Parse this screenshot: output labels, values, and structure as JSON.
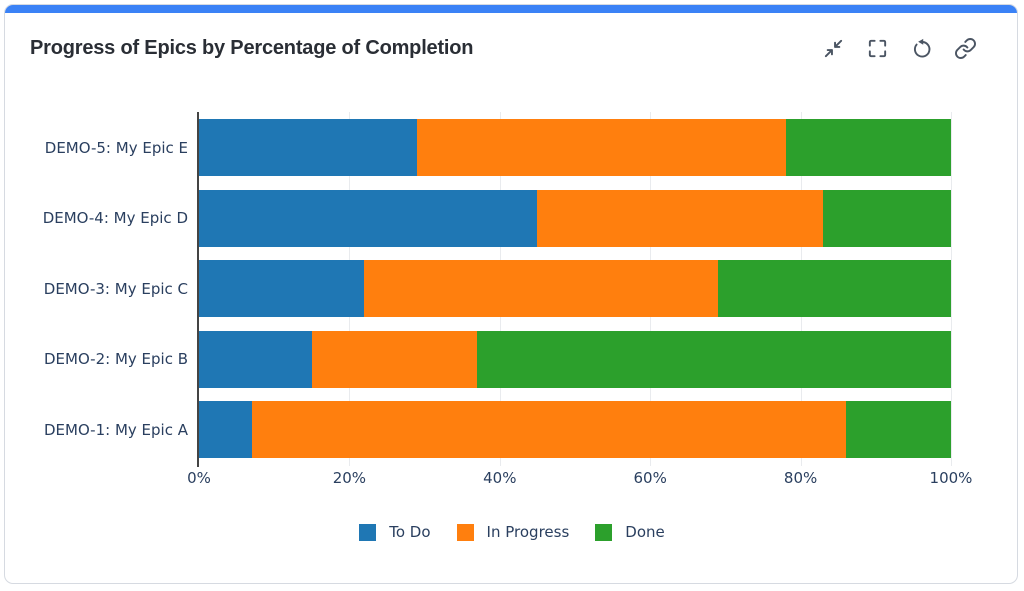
{
  "card": {
    "accent_color": "#3b82f6"
  },
  "header": {
    "title": "Progress of Epics by Percentage of Completion",
    "icons": [
      "collapse-icon",
      "fullscreen-icon",
      "refresh-icon",
      "link-icon"
    ]
  },
  "chart_data": {
    "type": "bar",
    "orientation": "horizontal",
    "stacked": true,
    "title": "Progress of Epics by Percentage of Completion",
    "categories": [
      "DEMO-5: My Epic E",
      "DEMO-4: My Epic D",
      "DEMO-3: My Epic C",
      "DEMO-2: My Epic B",
      "DEMO-1: My Epic A"
    ],
    "series": [
      {
        "name": "To Do",
        "color": "#1f77b4",
        "values": [
          29,
          45,
          22,
          15,
          7
        ]
      },
      {
        "name": "In Progress",
        "color": "#ff7f0e",
        "values": [
          49,
          38,
          47,
          22,
          79
        ]
      },
      {
        "name": "Done",
        "color": "#2ca02c",
        "values": [
          22,
          17,
          31,
          63,
          14
        ]
      }
    ],
    "xlim": [
      0,
      100
    ],
    "x_ticks": [
      "0%",
      "20%",
      "40%",
      "60%",
      "80%",
      "100%"
    ],
    "grid": true,
    "gridline_color": "#e9ebee",
    "axis_color": "#444444",
    "label_color": "#2a3f5f",
    "legend_position": "bottom"
  }
}
